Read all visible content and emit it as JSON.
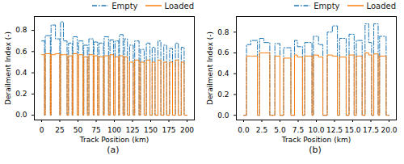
{
  "chart_data": [
    {
      "type": "step",
      "caption": "(a)",
      "xlabel": "Track Position (km)",
      "ylabel": "Derailment Index (-)",
      "x": [
        0,
        4,
        5,
        12,
        13,
        19,
        25,
        26,
        30,
        35,
        37,
        42,
        43,
        49,
        51,
        57,
        58,
        63,
        65,
        71,
        72,
        77,
        79,
        85,
        86,
        92,
        94,
        99,
        101,
        106,
        107,
        112,
        114,
        118,
        121,
        126,
        128,
        134,
        136,
        141,
        144,
        149,
        152,
        156,
        160,
        164,
        168,
        172,
        176,
        180,
        184,
        188,
        192,
        196,
        200
      ],
      "series": [
        {
          "name": "Empty",
          "color": "#1f77b4",
          "line_style": "dashdot",
          "values": [
            0.7,
            0,
            0.75,
            0,
            0.85,
            0.72,
            0,
            0.88,
            0.7,
            0,
            0.68,
            0,
            0.74,
            0,
            0.7,
            0,
            0.66,
            0,
            0.72,
            0,
            0.69,
            0,
            0.68,
            0,
            0.74,
            0,
            0.71,
            0,
            0.7,
            0,
            0.76,
            0,
            0.72,
            0,
            0.66,
            0,
            0.7,
            0,
            0.62,
            0,
            0.68,
            0,
            0.64,
            0,
            0.7,
            0,
            0.66,
            0,
            0.63,
            0,
            0.68,
            0,
            0.64,
            0,
            0
          ]
        },
        {
          "name": "Loaded",
          "color": "#ff7f0e",
          "line_style": "solid",
          "values": [
            0.57,
            0,
            0.58,
            0,
            0.57,
            0.58,
            0,
            0.57,
            0.57,
            0,
            0.56,
            0,
            0.58,
            0,
            0.57,
            0,
            0.55,
            0,
            0.57,
            0,
            0.56,
            0,
            0.55,
            0,
            0.56,
            0,
            0.57,
            0,
            0.55,
            0,
            0.56,
            0,
            0.55,
            0,
            0.5,
            0,
            0.52,
            0,
            0.5,
            0,
            0.52,
            0,
            0.5,
            0,
            0.52,
            0,
            0.5,
            0,
            0.5,
            0,
            0.52,
            0,
            0.5,
            0,
            0
          ]
        }
      ],
      "xlim": [
        -10,
        210
      ],
      "xticks": [
        0,
        25,
        50,
        75,
        100,
        125,
        150,
        175,
        200
      ],
      "ylim": [
        -0.045,
        0.93
      ],
      "yticks": [
        {
          "value": 0,
          "label": "0.0"
        },
        0.2,
        0.4,
        0.6,
        0.8
      ],
      "legend": "upper right"
    },
    {
      "type": "step",
      "caption": "(b)",
      "xlabel": "Track Position (km)",
      "ylabel": "Derailment Index (-)",
      "x": [
        0,
        0.4,
        1.0,
        1.9,
        2.2,
        2.8,
        3.6,
        4.3,
        5.0,
        5.5,
        6.5,
        7.0,
        7.4,
        8.1,
        8.4,
        9.4,
        9.6,
        10.3,
        10.9,
        11.5,
        12.2,
        12.9,
        13.2,
        14.1,
        14.5,
        15.2,
        15.5,
        16.3,
        16.7,
        17.2,
        17.6,
        17.9,
        18.5,
        18.7,
        19.6,
        20.0
      ],
      "series": [
        {
          "name": "Empty",
          "color": "#1f77b4",
          "line_style": "dashdot",
          "values": [
            0,
            0.68,
            0.72,
            0,
            0.74,
            0.7,
            0,
            0.69,
            0,
            0.65,
            0,
            0.72,
            0.66,
            0,
            0.7,
            0,
            0.76,
            0.68,
            0,
            0.8,
            0.86,
            0,
            0.74,
            0,
            0.78,
            0,
            0.72,
            0,
            0.88,
            0.7,
            0,
            0.88,
            0,
            0.76,
            0,
            0
          ]
        },
        {
          "name": "Loaded",
          "color": "#ff7f0e",
          "line_style": "solid",
          "values": [
            0,
            0.57,
            0.57,
            0,
            0.6,
            0.6,
            0,
            0.57,
            0,
            0.55,
            0,
            0.58,
            0.56,
            0,
            0.57,
            0,
            0.58,
            0.56,
            0,
            0.58,
            0.57,
            0,
            0.56,
            0,
            0.58,
            0,
            0.57,
            0,
            0.6,
            0.58,
            0,
            0.59,
            0,
            0.57,
            0,
            0
          ]
        }
      ],
      "xlim": [
        -1,
        21
      ],
      "xticks": [
        {
          "value": 0,
          "label": "0.0"
        },
        2.5,
        {
          "value": 5,
          "label": "5.0"
        },
        7.5,
        {
          "value": 10,
          "label": "10.0"
        },
        12.5,
        {
          "value": 15,
          "label": "15.0"
        },
        17.5,
        {
          "value": 20,
          "label": "20.0"
        }
      ],
      "ylim": [
        -0.045,
        0.95
      ],
      "yticks": [
        {
          "value": 0,
          "label": "0.0"
        },
        0.2,
        0.4,
        0.6,
        0.8
      ],
      "legend": "upper right"
    }
  ]
}
